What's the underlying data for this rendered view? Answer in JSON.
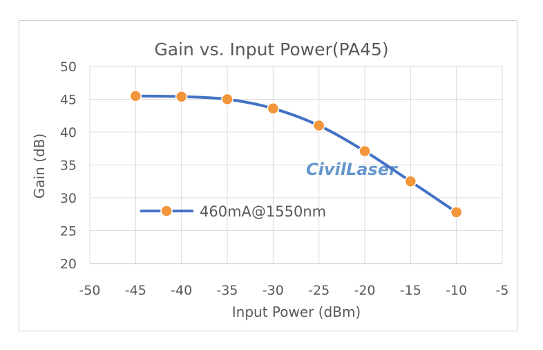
{
  "chart_data": {
    "type": "line",
    "title": "Gain vs. Input Power(PA45)",
    "xlabel": "Input Power (dBm)",
    "ylabel": "Gain (dB)",
    "xlim": [
      -50,
      -5
    ],
    "ylim": [
      20,
      50
    ],
    "xticks": [
      "-50",
      "-45",
      "-40",
      "-35",
      "-30",
      "-25",
      "-20",
      "-15",
      "-10",
      "-5"
    ],
    "yticks": [
      "20",
      "25",
      "30",
      "35",
      "40",
      "45",
      "50"
    ],
    "grid": true,
    "legend_position": "center-left",
    "series": [
      {
        "name": "460mA@1550nm",
        "color": "#4472c4",
        "marker_color": "#f3953a",
        "x": [
          -45,
          -40,
          -35,
          -30,
          -25,
          -20,
          -15,
          -10
        ],
        "y": [
          45.5,
          45.4,
          45.0,
          43.6,
          41.0,
          37.1,
          32.5,
          27.8
        ]
      }
    ]
  },
  "watermark": "CivilLaser"
}
